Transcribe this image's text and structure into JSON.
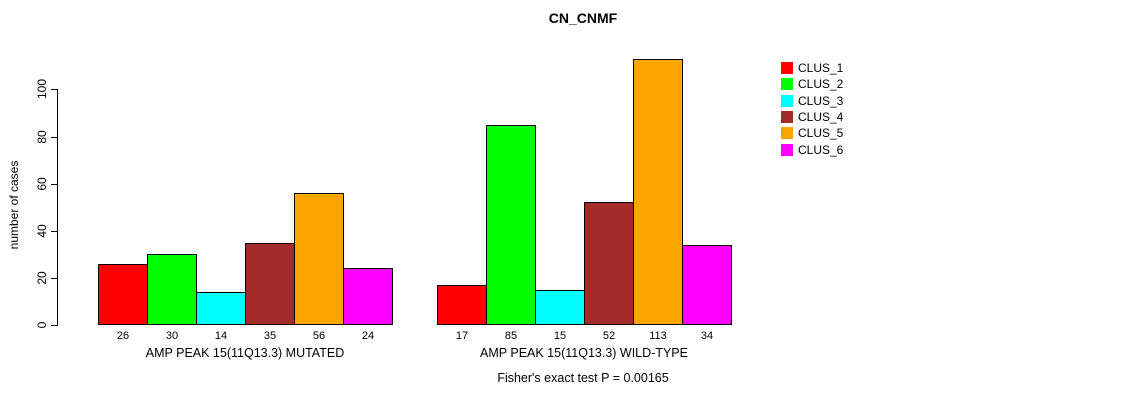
{
  "title": "CN_CNMF",
  "ylabel": "number of cases",
  "footer": "Fisher's exact test P = 0.00165",
  "chart_data": {
    "type": "bar",
    "title": "CN_CNMF",
    "ylabel": "number of cases",
    "xlabel": "",
    "caption": "Fisher's exact test P = 0.00165",
    "categories": [
      "AMP PEAK 15(11Q13.3) MUTATED",
      "AMP PEAK 15(11Q13.3) WILD-TYPE"
    ],
    "series": [
      {
        "name": "CLUS_1",
        "color": "#FF0000",
        "values": [
          26,
          17
        ]
      },
      {
        "name": "CLUS_2",
        "color": "#00FF00",
        "values": [
          30,
          85
        ]
      },
      {
        "name": "CLUS_3",
        "color": "#00FFFF",
        "values": [
          14,
          15
        ]
      },
      {
        "name": "CLUS_4",
        "color": "#A52A2A",
        "values": [
          35,
          52
        ]
      },
      {
        "name": "CLUS_5",
        "color": "#FFA500",
        "values": [
          56,
          113
        ]
      },
      {
        "name": "CLUS_6",
        "color": "#FF00FF",
        "values": [
          24,
          34
        ]
      }
    ],
    "yticks": [
      0,
      20,
      40,
      60,
      80,
      100
    ],
    "ylim": [
      0,
      113
    ],
    "bar_value_labels_shown": true,
    "grid": false,
    "legend_position": "top-right",
    "legend_entries": [
      "CLUS_1",
      "CLUS_2",
      "CLUS_3",
      "CLUS_4",
      "CLUS_5",
      "CLUS_6"
    ]
  }
}
